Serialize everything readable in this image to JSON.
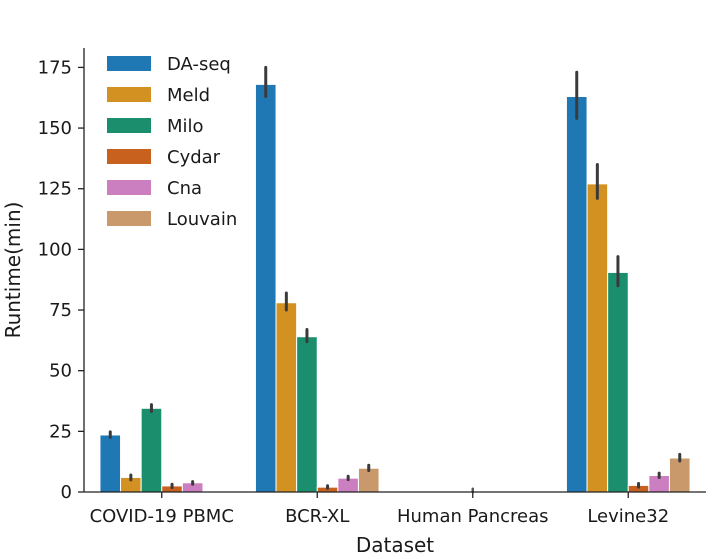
{
  "chart_data": {
    "type": "bar",
    "title": "",
    "xlabel": "Dataset",
    "ylabel": "Runtime(min)",
    "ylim": [
      0,
      183
    ],
    "yticks": [
      0,
      25,
      50,
      75,
      100,
      125,
      150,
      175
    ],
    "grid": false,
    "legend_position": "top-left",
    "categories": [
      "COVID-19 PBMC",
      "BCR-XL",
      "Human Pancreas",
      "Levine32"
    ],
    "series": [
      {
        "name": "DA-seq",
        "color": "#1f77b4",
        "values": [
          23.5,
          168,
          0,
          163
        ],
        "error": [
          [
            22.5,
            24.8
          ],
          [
            163,
            175
          ],
          [
            0,
            0
          ],
          [
            154,
            173
          ]
        ]
      },
      {
        "name": "Meld",
        "color": "#d29120",
        "values": [
          6,
          78,
          0,
          127
        ],
        "error": [
          [
            5,
            7
          ],
          [
            75,
            82
          ],
          [
            0,
            0
          ],
          [
            121,
            135
          ]
        ]
      },
      {
        "name": "Milo",
        "color": "#1b8f6d",
        "values": [
          34.5,
          64,
          0,
          90.5
        ],
        "error": [
          [
            33.2,
            36
          ],
          [
            62,
            67
          ],
          [
            0,
            0
          ],
          [
            85,
            97
          ]
        ]
      },
      {
        "name": "Cydar",
        "color": "#c8611e",
        "values": [
          2.5,
          2,
          0,
          2.7
        ],
        "error": [
          [
            1.8,
            3.2
          ],
          [
            1.5,
            2.6
          ],
          [
            0,
            0
          ],
          [
            2,
            3.5
          ]
        ]
      },
      {
        "name": "Cna",
        "color": "#cc7fc0",
        "values": [
          3.8,
          5.7,
          0,
          6.8
        ],
        "error": [
          [
            3.2,
            4.3
          ],
          [
            5.1,
            6.5
          ],
          [
            0,
            0
          ],
          [
            6,
            7.8
          ]
        ]
      },
      {
        "name": "Louvain",
        "color": "#c9996b",
        "values": [
          0,
          9.8,
          0,
          14
        ],
        "error": [
          [
            0,
            0
          ],
          [
            8.8,
            11
          ],
          [
            0,
            0
          ],
          [
            12.8,
            15.5
          ]
        ]
      }
    ],
    "extra_marks": [
      {
        "category": "Human Pancreas",
        "value": 0.3,
        "error": [
          0,
          0.7
        ]
      }
    ]
  }
}
